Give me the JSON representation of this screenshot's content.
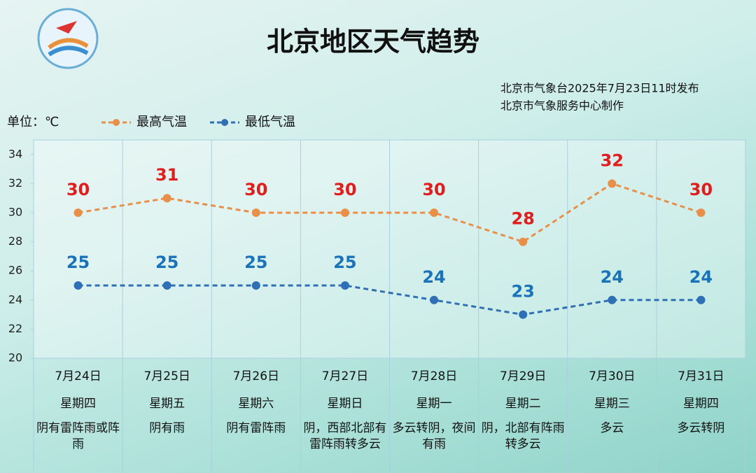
{
  "chart_data": {
    "type": "line",
    "title": "北京地区天气趋势",
    "publisher": [
      "北京市气象台2025年7月23日11时发布",
      "北京市气象服务中心制作"
    ],
    "unit_label": "单位：℃",
    "categories": [
      "7月24日",
      "7月25日",
      "7月26日",
      "7月27日",
      "7月28日",
      "7月29日",
      "7月30日",
      "7月31日"
    ],
    "weekdays": [
      "星期四",
      "星期五",
      "星期六",
      "星期日",
      "星期一",
      "星期二",
      "星期三",
      "星期四"
    ],
    "weather": [
      "阴有雷阵雨或阵雨",
      "阴有雨",
      "阴有雷阵雨",
      "阴，西部北部有雷阵雨转多云",
      "多云转阴，夜间有雨",
      "阴，北部有阵雨转多云",
      "多云",
      "多云转阴"
    ],
    "series": [
      {
        "name": "最高气温",
        "color": "#e8904a",
        "label_color": "#e01e1e",
        "values": [
          30,
          31,
          30,
          30,
          30,
          28,
          32,
          30
        ]
      },
      {
        "name": "最低气温",
        "color": "#2e6fb5",
        "label_color": "#1a73b8",
        "values": [
          25,
          25,
          25,
          25,
          24,
          23,
          24,
          24
        ]
      }
    ],
    "ylim": [
      20,
      35
    ],
    "yticks": [
      20,
      22,
      24,
      26,
      28,
      30,
      32,
      34
    ],
    "grid": false
  }
}
